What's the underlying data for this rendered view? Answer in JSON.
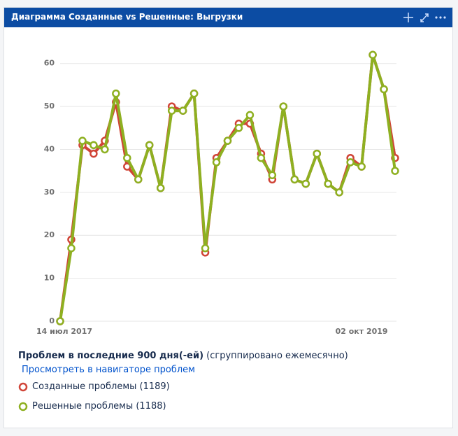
{
  "chart_data": {
    "type": "line",
    "title": "Диаграмма Созданные vs Решенные: Выгрузки",
    "categories": [
      "14 июл 2017",
      null,
      null,
      null,
      null,
      null,
      null,
      null,
      null,
      null,
      null,
      null,
      null,
      null,
      null,
      null,
      null,
      null,
      null,
      null,
      null,
      null,
      null,
      null,
      null,
      null,
      null,
      "02 окт 2019",
      null,
      null,
      null
    ],
    "series": [
      {
        "name": "Созданные проблемы (1189)",
        "color": "#d04437",
        "values": [
          0,
          19,
          41,
          39,
          42,
          51,
          36,
          33,
          41,
          31,
          50,
          49,
          53,
          16,
          38,
          42,
          46,
          46,
          39,
          33,
          50,
          33,
          32,
          39,
          32,
          30,
          38,
          36,
          62,
          54,
          38
        ]
      },
      {
        "name": "Решенные проблемы (1188)",
        "color": "#8eb021",
        "values": [
          0,
          17,
          42,
          41,
          40,
          53,
          38,
          33,
          41,
          31,
          49,
          49,
          53,
          17,
          37,
          42,
          45,
          48,
          38,
          34,
          50,
          33,
          32,
          39,
          32,
          30,
          37,
          36,
          62,
          54,
          35
        ]
      }
    ],
    "ylim": [
      0,
      65
    ],
    "yticks": [
      0,
      10,
      20,
      30,
      40,
      50,
      60
    ],
    "grid": true
  },
  "footer": {
    "summary": "Проблем в последние 900 дня(-ей)",
    "grouping": "(сгруппировано ежемесячно)",
    "link": "Просмотреть в навигаторе проблем"
  }
}
